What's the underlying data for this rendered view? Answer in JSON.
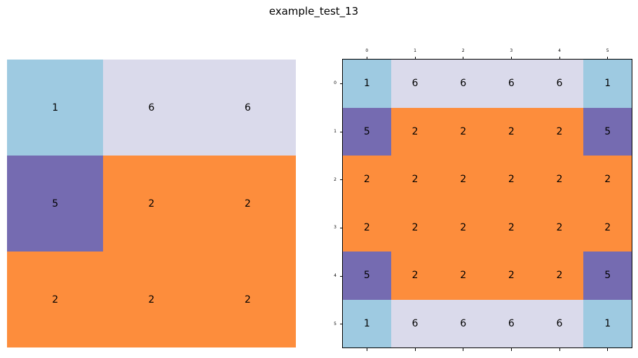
{
  "title": "example_test_13",
  "palette": {
    "1": "#9ecae1",
    "2": "#fd8d3c",
    "5": "#756bb1",
    "6": "#dadaeb"
  },
  "input_grid": [
    [
      1,
      6,
      6
    ],
    [
      5,
      2,
      2
    ],
    [
      2,
      2,
      2
    ]
  ],
  "output_grid": [
    [
      1,
      6,
      6,
      6,
      6,
      1
    ],
    [
      5,
      2,
      2,
      2,
      2,
      5
    ],
    [
      2,
      2,
      2,
      2,
      2,
      2
    ],
    [
      2,
      2,
      2,
      2,
      2,
      2
    ],
    [
      5,
      2,
      2,
      2,
      2,
      5
    ],
    [
      1,
      6,
      6,
      6,
      6,
      1
    ]
  ],
  "output_ticks": [
    "0",
    "1",
    "2",
    "3",
    "4",
    "5"
  ]
}
